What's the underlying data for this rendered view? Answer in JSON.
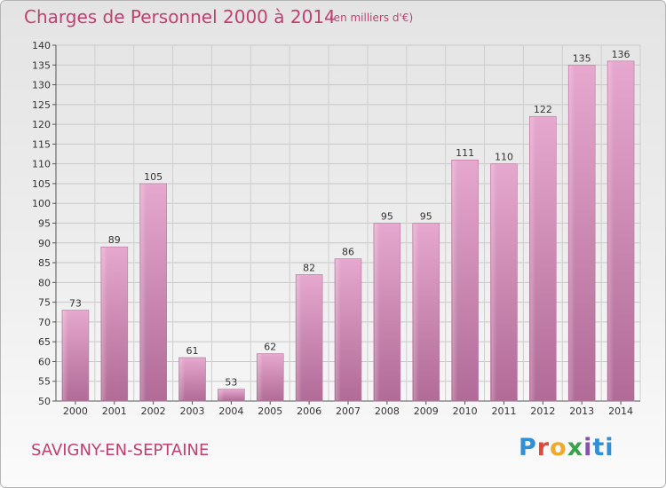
{
  "header": {
    "title": "Charges de Personnel 2000 à 2014",
    "subtitle": "(en milliers d'€)"
  },
  "footer": {
    "commune": "SAVIGNY-EN-SEPTAINE",
    "logo": "Proxiti",
    "logo_letters": [
      "P",
      "r",
      "o",
      "x",
      "i",
      "ti"
    ]
  },
  "chart_data": {
    "type": "bar",
    "categories": [
      "2000",
      "2001",
      "2002",
      "2003",
      "2004",
      "2005",
      "2006",
      "2007",
      "2008",
      "2009",
      "2010",
      "2011",
      "2012",
      "2013",
      "2014"
    ],
    "values": [
      73,
      89,
      105,
      61,
      53,
      62,
      82,
      86,
      95,
      95,
      111,
      110,
      122,
      135,
      136
    ],
    "title": "Charges de Personnel 2000 à 2014",
    "subtitle": "(en milliers d'€)",
    "ylim": [
      50,
      140
    ],
    "yticks": [
      50,
      55,
      60,
      65,
      70,
      75,
      80,
      85,
      90,
      95,
      100,
      105,
      110,
      115,
      120,
      125,
      130,
      135,
      140
    ],
    "grid": true,
    "bar_color": "#d98cb7"
  }
}
